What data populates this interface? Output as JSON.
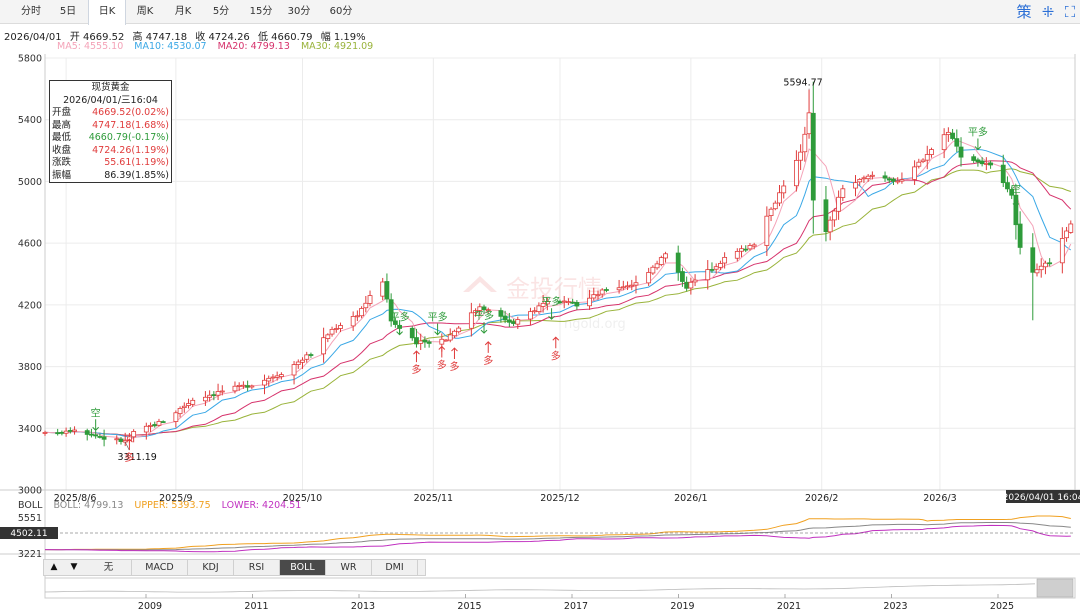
{
  "tabs": [
    {
      "label": "分时",
      "active": false
    },
    {
      "label": "5日",
      "active": false
    },
    {
      "label": "日K",
      "active": true
    },
    {
      "label": "周K",
      "active": false
    },
    {
      "label": "月K",
      "active": false
    },
    {
      "label": "5分",
      "active": false
    },
    {
      "label": "15分",
      "active": false
    },
    {
      "label": "30分",
      "active": false
    },
    {
      "label": "60分",
      "active": false
    }
  ],
  "toolbar_icons": [
    "strategy-icon",
    "grid-icon",
    "expand-icon"
  ],
  "toolbar_icon_glyphs": [
    "策",
    "⁜",
    "⛶"
  ],
  "info": {
    "date": "2026/04/01",
    "open": "开 4669.52",
    "high": "高 4747.18",
    "close": "收 4724.26",
    "low": "低 4660.79",
    "range": "幅 1.19%"
  },
  "ma": [
    {
      "label": "MA5: 4555.10",
      "color": "#f4a3b8"
    },
    {
      "label": "MA10: 4530.07",
      "color": "#3aa8e6"
    },
    {
      "label": "MA20: 4799.13",
      "color": "#d6336c"
    },
    {
      "label": "MA30: 4921.09",
      "color": "#99b33a"
    }
  ],
  "tooltip": {
    "title": "现货黄金",
    "date": "2026/04/01/三16:04",
    "rows": [
      {
        "k": "开盘",
        "v": "4669.52(0.02%)",
        "color": "#e03b3b"
      },
      {
        "k": "最高",
        "v": "4747.18(1.68%)",
        "color": "#e03b3b"
      },
      {
        "k": "最低",
        "v": "4660.79(-0.17%)",
        "color": "#2e9b3a"
      },
      {
        "k": "收盘",
        "v": "4724.26(1.19%)",
        "color": "#e03b3b"
      },
      {
        "k": "涨跌",
        "v": "55.61(1.19%)",
        "color": "#e03b3b"
      },
      {
        "k": "振幅",
        "v": "86.39(1.85%)",
        "color": "#222222"
      }
    ]
  },
  "boll": {
    "name": "BOLL",
    "boll": "BOLL: 4799.13",
    "upper": "UPPER: 5393.75",
    "lower": "LOWER: 4204.51",
    "boll_color": "#888888",
    "upper_color": "#f0a020",
    "lower_color": "#c030c0",
    "y_labels": [
      "5551",
      "4502.11",
      "3221"
    ]
  },
  "indicators": [
    {
      "label": "无",
      "active": false
    },
    {
      "label": "MACD",
      "active": false
    },
    {
      "label": "KDJ",
      "active": false
    },
    {
      "label": "RSI",
      "active": false
    },
    {
      "label": "BOLL",
      "active": true
    },
    {
      "label": "WR",
      "active": false
    },
    {
      "label": "DMI",
      "active": false
    }
  ],
  "nav_arrows": [
    "▲",
    "▼"
  ],
  "navigator_years": [
    "2009",
    "2011",
    "2013",
    "2015",
    "2017",
    "2019",
    "2021",
    "2023",
    "2025"
  ],
  "watermark": {
    "brand": "金投行情",
    "url": "ngold.org"
  },
  "chart_data": {
    "type": "candlestick",
    "title": "现货黄金",
    "ylim": [
      3000,
      5800
    ],
    "y_ticks": [
      3000,
      3400,
      3800,
      4200,
      4600,
      5000,
      5400,
      5800
    ],
    "x_labels": [
      "2025/8/6",
      "2025/9",
      "2025/10",
      "2025/11",
      "2025/12",
      "2026/1",
      "2026/2",
      "2026/3"
    ],
    "x_label_dates": [
      "2025-08-06",
      "2025-09-01",
      "2025-10-01",
      "2025-11-01",
      "2025-12-01",
      "2026-01-01",
      "2026-02-01",
      "2026-03-01"
    ],
    "x_range": [
      "2025-08-01",
      "2026-04-02"
    ],
    "crosshair_label": "2026/04/01 16:04",
    "close_points": [
      [
        "2025-08-01",
        3363
      ],
      [
        "2025-08-08",
        3397
      ],
      [
        "2025-08-15",
        3336
      ],
      [
        "2025-08-20",
        3316
      ],
      [
        "2025-08-22",
        3371
      ],
      [
        "2025-08-29",
        3448
      ],
      [
        "2025-09-05",
        3586
      ],
      [
        "2025-09-12",
        3643
      ],
      [
        "2025-09-19",
        3685
      ],
      [
        "2025-09-26",
        3760
      ],
      [
        "2025-10-03",
        3886
      ],
      [
        "2025-10-08",
        4040
      ],
      [
        "2025-10-14",
        4140
      ],
      [
        "2025-10-17",
        4252
      ],
      [
        "2025-10-20",
        4356
      ],
      [
        "2025-10-22",
        4098
      ],
      [
        "2025-10-28",
        3950
      ],
      [
        "2025-11-04",
        3980
      ],
      [
        "2025-11-12",
        4195
      ],
      [
        "2025-11-20",
        4075
      ],
      [
        "2025-11-28",
        4230
      ],
      [
        "2025-12-05",
        4200
      ],
      [
        "2025-12-12",
        4300
      ],
      [
        "2025-12-19",
        4340
      ],
      [
        "2025-12-26",
        4530
      ],
      [
        "2025-12-31",
        4320
      ],
      [
        "2026-01-09",
        4500
      ],
      [
        "2026-01-16",
        4600
      ],
      [
        "2026-01-23",
        4980
      ],
      [
        "2026-01-27",
        5180
      ],
      [
        "2026-01-29",
        5450
      ],
      [
        "2026-01-30",
        4890
      ],
      [
        "2026-02-02",
        4670
      ],
      [
        "2026-02-06",
        4960
      ],
      [
        "2026-02-13",
        5040
      ],
      [
        "2026-02-20",
        5000
      ],
      [
        "2026-02-27",
        5210
      ],
      [
        "2026-03-03",
        5330
      ],
      [
        "2026-03-06",
        5170
      ],
      [
        "2026-03-13",
        5100
      ],
      [
        "2026-03-18",
        4900
      ],
      [
        "2026-03-20",
        4560
      ],
      [
        "2026-03-23",
        4400
      ],
      [
        "2026-03-27",
        4480
      ],
      [
        "2026-03-31",
        4669
      ],
      [
        "2026-04-01",
        4724
      ]
    ],
    "extra_wicks": [
      [
        "2026-01-29",
        5594.77
      ],
      [
        "2026-03-23",
        4100
      ]
    ],
    "annotations": [
      {
        "text": "5594.77",
        "date": "2026-01-29",
        "value": 5594.77,
        "type": "label"
      },
      {
        "text": "3311.19",
        "date": "2025-08-20",
        "value": 3311.19,
        "type": "label"
      },
      {
        "text": "空",
        "date": "2025-08-13",
        "value": 3400,
        "type": "sell"
      },
      {
        "text": "多",
        "date": "2025-08-21",
        "value": 3330,
        "type": "buy"
      },
      {
        "text": "平多",
        "date": "2025-10-24",
        "value": 4020,
        "type": "sell"
      },
      {
        "text": "多",
        "date": "2025-10-28",
        "value": 3900,
        "type": "buy"
      },
      {
        "text": "平多",
        "date": "2025-11-02",
        "value": 4020,
        "type": "sell"
      },
      {
        "text": "多",
        "date": "2025-11-03",
        "value": 3930,
        "type": "buy"
      },
      {
        "text": "多",
        "date": "2025-11-06",
        "value": 3920,
        "type": "buy"
      },
      {
        "text": "平多",
        "date": "2025-11-13",
        "value": 4030,
        "type": "sell"
      },
      {
        "text": "多",
        "date": "2025-11-14",
        "value": 3960,
        "type": "buy"
      },
      {
        "text": "平多",
        "date": "2025-11-29",
        "value": 4120,
        "type": "sell"
      },
      {
        "text": "多",
        "date": "2025-11-30",
        "value": 3990,
        "type": "buy"
      },
      {
        "text": "平多",
        "date": "2026-03-10",
        "value": 5220,
        "type": "sell"
      },
      {
        "text": "空",
        "date": "2026-03-19",
        "value": 4850,
        "type": "sell"
      }
    ]
  }
}
